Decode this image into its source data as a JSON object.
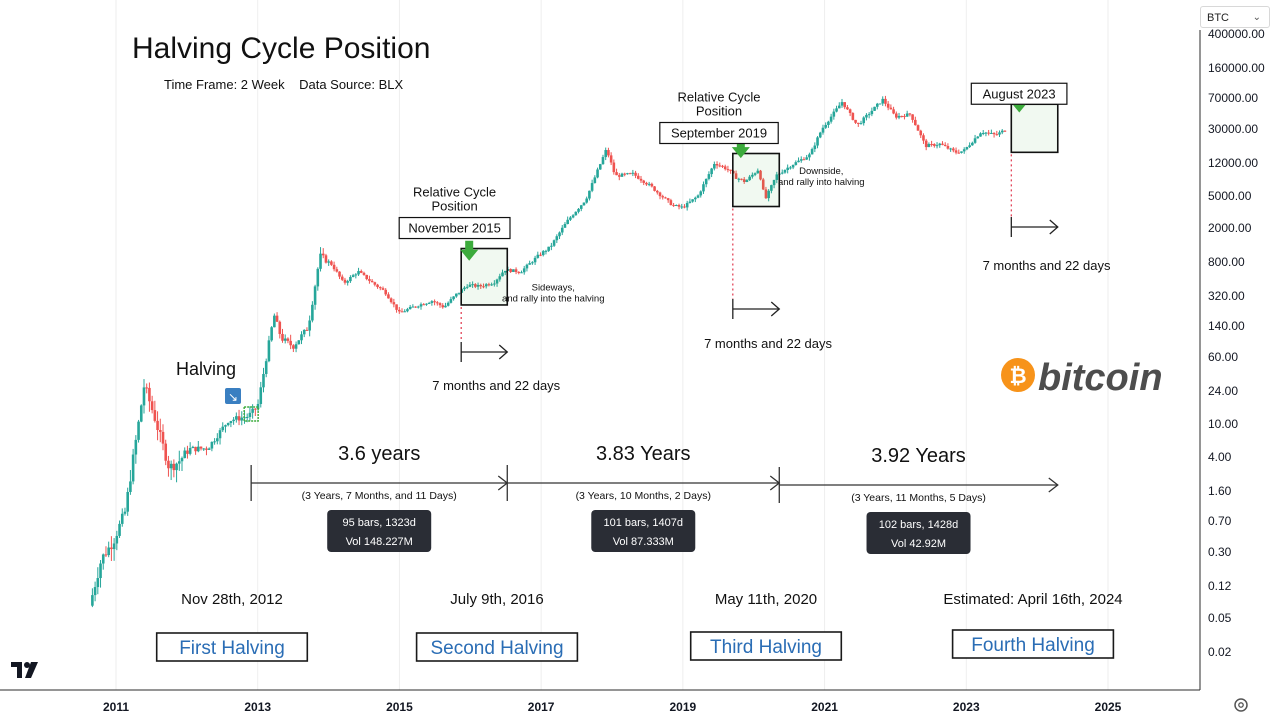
{
  "title": "Halving Cycle Position",
  "subtitle": "Time Frame: 2 Week    Data Source: BLX",
  "symbol": {
    "label": "BTC",
    "icon": "chevron-down-icon"
  },
  "brand": {
    "text": "bitcoin",
    "symbol": "₿",
    "color": "#f7931a"
  },
  "colors": {
    "up": "#26a69a",
    "down": "#ef5350",
    "arrow": "#3cab3c",
    "label_blue": "#2a6db5",
    "dotted": "#e0354b",
    "tip_bg": "#2a2d35"
  },
  "chart_data": {
    "type": "candlestick",
    "ylabel_scale": "log",
    "x_ticks": [
      "2011",
      "2013",
      "2015",
      "2017",
      "2019",
      "2021",
      "2023",
      "2025"
    ],
    "y_ticks": [
      "400000.00",
      "160000.00",
      "70000.00",
      "30000.00",
      "12000.00",
      "5000.00",
      "2000.00",
      "800.00",
      "320.00",
      "140.00",
      "60.00",
      "24.00",
      "10.00",
      "4.00",
      "1.60",
      "0.70",
      "0.30",
      "0.12",
      "0.05",
      "0.02"
    ],
    "y_tick_values": [
      400000,
      160000,
      70000,
      30000,
      12000,
      5000,
      2000,
      800,
      320,
      140,
      60,
      24,
      10,
      4,
      1.6,
      0.7,
      0.3,
      0.12,
      0.05,
      0.02
    ],
    "price_path": [
      [
        "2010-09-01",
        0.07
      ],
      [
        "2010-11-01",
        0.25
      ],
      [
        "2011-01-01",
        0.4
      ],
      [
        "2011-03-01",
        0.9
      ],
      [
        "2011-06-08",
        28
      ],
      [
        "2011-08-01",
        12
      ],
      [
        "2011-10-15",
        3
      ],
      [
        "2011-12-01",
        3.5
      ],
      [
        "2012-02-01",
        5
      ],
      [
        "2012-05-01",
        5.1
      ],
      [
        "2012-08-15",
        11
      ],
      [
        "2012-11-28",
        12.3
      ],
      [
        "2013-01-15",
        16
      ],
      [
        "2013-04-08",
        190
      ],
      [
        "2013-05-15",
        100
      ],
      [
        "2013-07-15",
        80
      ],
      [
        "2013-10-01",
        135
      ],
      [
        "2013-12-01",
        950
      ],
      [
        "2014-02-01",
        750
      ],
      [
        "2014-04-01",
        450
      ],
      [
        "2014-06-15",
        620
      ],
      [
        "2014-09-01",
        450
      ],
      [
        "2014-11-01",
        360
      ],
      [
        "2015-01-15",
        200
      ],
      [
        "2015-04-01",
        240
      ],
      [
        "2015-07-01",
        280
      ],
      [
        "2015-09-01",
        235
      ],
      [
        "2015-11-01",
        330
      ],
      [
        "2016-01-01",
        430
      ],
      [
        "2016-03-01",
        415
      ],
      [
        "2016-05-15",
        460
      ],
      [
        "2016-07-09",
        650
      ],
      [
        "2016-10-01",
        615
      ],
      [
        "2017-01-01",
        950
      ],
      [
        "2017-03-01",
        1200
      ],
      [
        "2017-06-01",
        2500
      ],
      [
        "2017-09-01",
        4500
      ],
      [
        "2017-12-17",
        17500
      ],
      [
        "2018-02-01",
        8500
      ],
      [
        "2018-05-01",
        9000
      ],
      [
        "2018-08-01",
        6500
      ],
      [
        "2018-11-25",
        3800
      ],
      [
        "2019-01-15",
        3600
      ],
      [
        "2019-04-01",
        5000
      ],
      [
        "2019-06-26",
        12000
      ],
      [
        "2019-09-01",
        10200
      ],
      [
        "2019-10-15",
        8200
      ],
      [
        "2019-12-01",
        7300
      ],
      [
        "2020-02-10",
        10200
      ],
      [
        "2020-03-13",
        4500
      ],
      [
        "2020-05-11",
        8700
      ],
      [
        "2020-08-01",
        11500
      ],
      [
        "2020-11-01",
        15000
      ],
      [
        "2021-01-01",
        30000
      ],
      [
        "2021-04-14",
        63000
      ],
      [
        "2021-07-01",
        33000
      ],
      [
        "2021-11-10",
        67000
      ],
      [
        "2022-01-15",
        42000
      ],
      [
        "2022-04-01",
        45000
      ],
      [
        "2022-06-18",
        19000
      ],
      [
        "2022-09-01",
        20000
      ],
      [
        "2022-11-20",
        16000
      ],
      [
        "2023-01-01",
        16600
      ],
      [
        "2023-04-01",
        28000
      ],
      [
        "2023-06-15",
        25500
      ],
      [
        "2023-08-01",
        29200
      ]
    ],
    "halving_dates": [
      "2012-11-28",
      "2016-07-09",
      "2020-05-11",
      "2024-04-16"
    ],
    "halving_dates_text": [
      "Nov 28th, 2012",
      "July 9th, 2016",
      "May 11th, 2020",
      "Estimated: April 16th, 2024"
    ],
    "halving_names": [
      "First Halving",
      "Second Halving",
      "Third Halving",
      "Fourth Halving"
    ],
    "halving_marker_label": "Halving",
    "cycle_spans": [
      {
        "years": "3.6 years",
        "detail": "(3 Years, 7 Months, and 11 Days)",
        "bars": "95 bars, 1323d",
        "vol": "Vol 148.227M"
      },
      {
        "years": "3.83 Years",
        "detail": "(3 Years, 10 Months, 2 Days)",
        "bars": "101 bars, 1407d",
        "vol": "Vol 87.333M"
      },
      {
        "years": "3.92 Years",
        "detail": "(3 Years, 11 Months, 5 Days)",
        "bars": "102 bars, 1428d",
        "vol": "Vol 42.92M"
      }
    ],
    "relative_positions": [
      {
        "heading": "Relative Cycle Position",
        "month": "November 2015",
        "note": "Sideways, and rally into the halving",
        "box_from": "2015-11-15",
        "box_to": "2016-07-09",
        "box_low": 250,
        "box_high": 1150,
        "arrow_price": 1000,
        "span_label": "7 months and 22 days"
      },
      {
        "heading": "Relative Cycle Position",
        "month": "September 2019",
        "note": "Downside, and rally into halving",
        "box_from": "2019-09-15",
        "box_to": "2020-05-11",
        "box_low": 3700,
        "box_high": 15500,
        "arrow_price": 16500,
        "span_label": "7 months and 22 days"
      },
      {
        "heading": "",
        "month": "August 2023",
        "note": "",
        "box_from": "2023-08-20",
        "box_to": "2024-04-16",
        "box_low": 16000,
        "box_high": 59000,
        "arrow_price": 57000,
        "span_label": "7 months and 22 days"
      }
    ]
  }
}
